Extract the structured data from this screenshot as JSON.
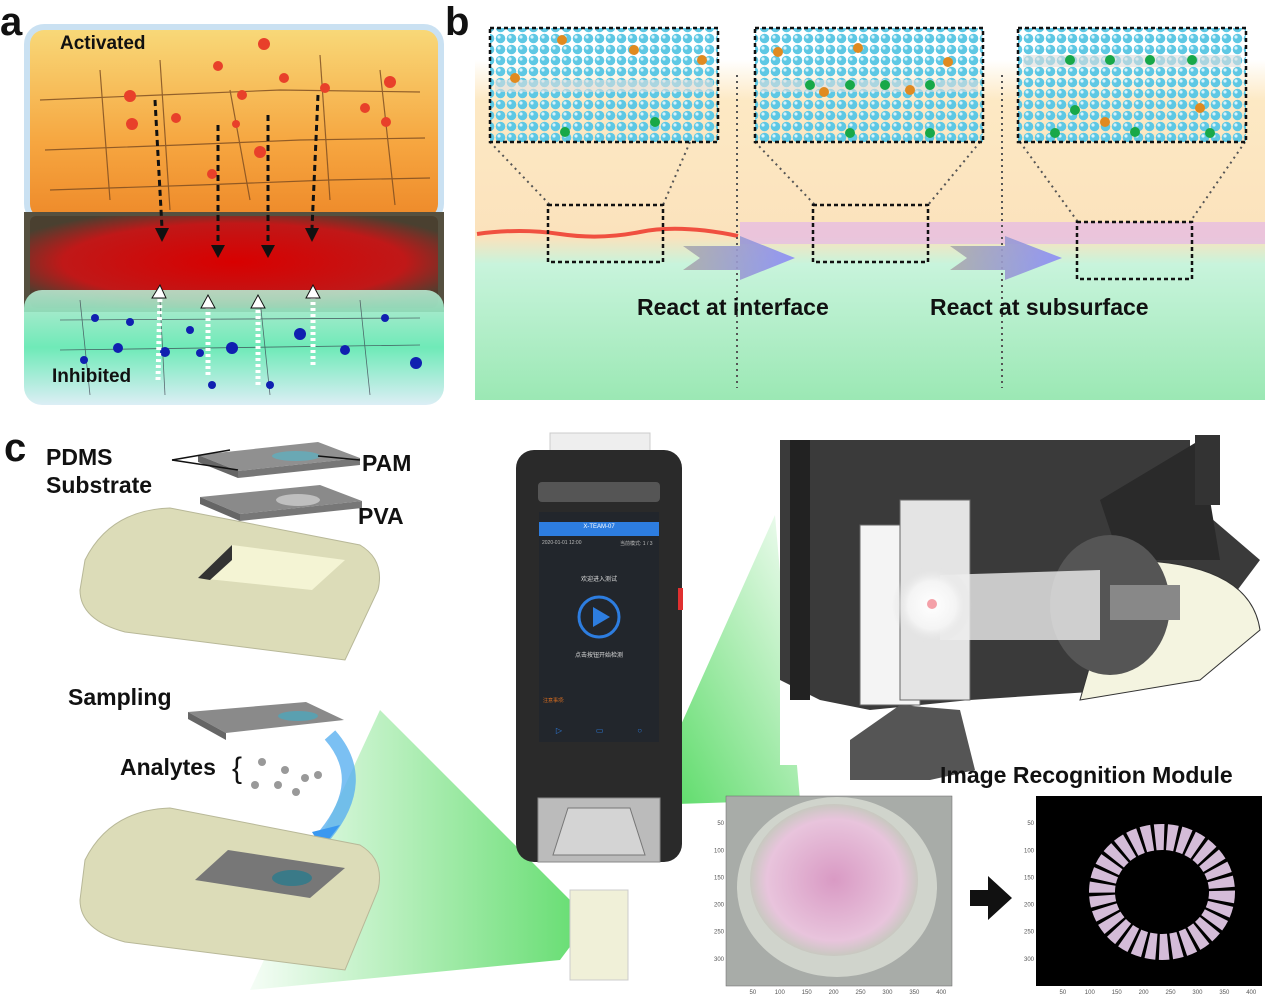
{
  "panels": {
    "a": "a",
    "b": "b",
    "c": "c"
  },
  "panel_a": {
    "top_label": "Activated",
    "bottom_label": "Inhibited"
  },
  "panel_b": {
    "label_interface": "React at interface",
    "label_subsurface": "React at subsurface"
  },
  "panel_c": {
    "pdms_line1": "PDMS",
    "pdms_line2": "Substrate",
    "pam": "PAM",
    "pva": "PVA",
    "sampling": "Sampling",
    "analytes": "Analytes",
    "module_title": "Image Recognition Module",
    "phone_screen": {
      "header": "X-TEAM-07",
      "status_left": "2020-01-01 12:00",
      "status_right": "当前模式: 1 / 3",
      "prompt": "欢迎进入测试",
      "play_hint": "点击按钮开始检测",
      "notes_title": "注意事项:",
      "icon_names": [
        "play-icon",
        "report-icon",
        "settings-icon"
      ]
    },
    "image_axes": {
      "x_ticks": [
        "50",
        "100",
        "150",
        "200",
        "250",
        "300",
        "350",
        "400"
      ],
      "y_ticks": [
        "50",
        "100",
        "150",
        "200",
        "250",
        "300"
      ]
    }
  },
  "colors": {
    "activated": "#f4a43a",
    "inhibited": "#5fe0a8",
    "reaction": "#c0201a",
    "green_beam": "#3bd44a",
    "sample_pink": "#d9a9c9"
  }
}
